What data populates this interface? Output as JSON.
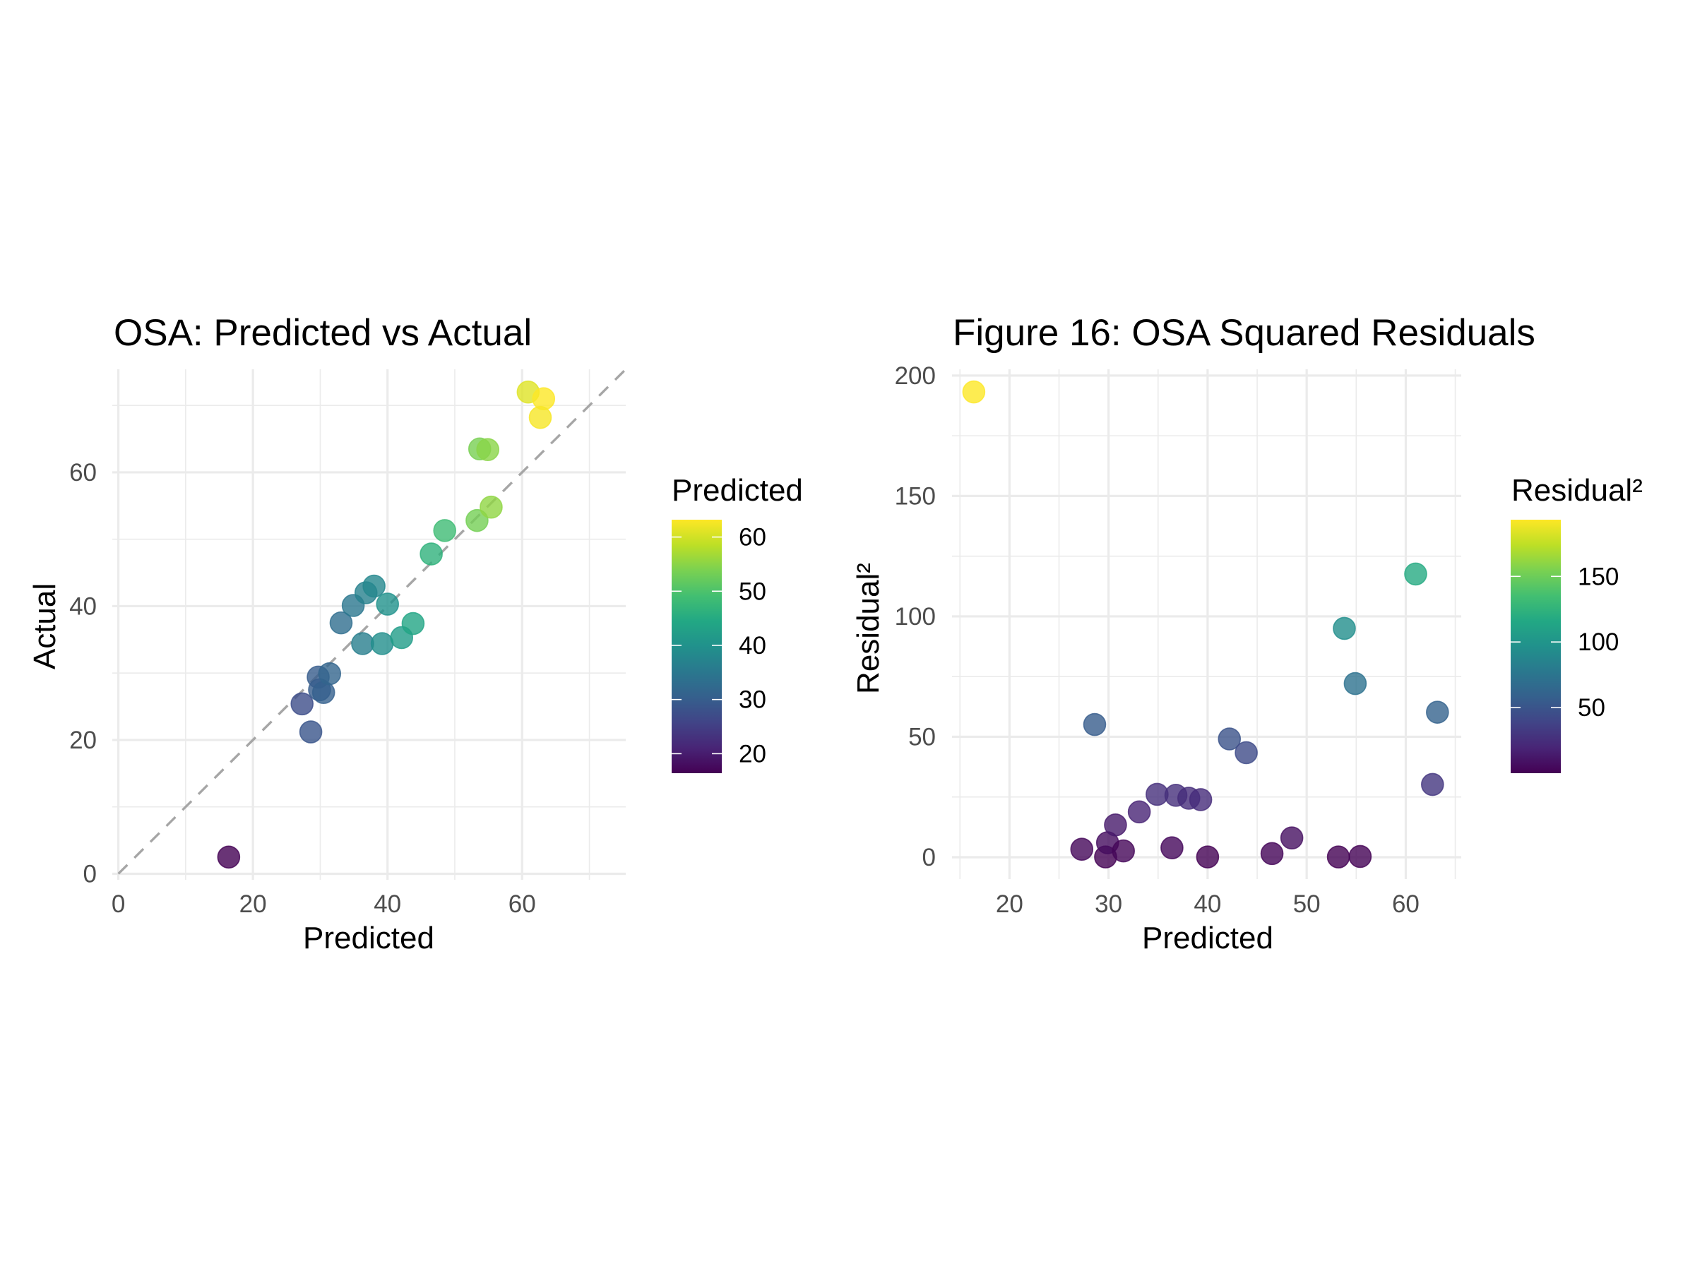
{
  "chart_data": [
    {
      "type": "scatter",
      "title": "OSA: Predicted vs Actual",
      "xlabel": "Predicted",
      "ylabel": "Actual",
      "xlim": [
        -0.9,
        75.4
      ],
      "ylim": [
        -0.9,
        75.4
      ],
      "x_ticks": [
        0,
        20,
        40,
        60
      ],
      "x_tick_labels": [
        "0",
        "20",
        "40",
        "60"
      ],
      "x_minor_ticks": [
        10,
        30,
        50,
        70
      ],
      "y_ticks": [
        0,
        20,
        40,
        60
      ],
      "y_tick_labels": [
        "0",
        "20",
        "40",
        "60"
      ],
      "y_minor_ticks": [
        10,
        30,
        50,
        70
      ],
      "grid": true,
      "reference_line": {
        "type": "identity",
        "slope": 1,
        "intercept": 0,
        "style": "dashed",
        "color": "#a6a6a6"
      },
      "color_by": "Predicted",
      "colormap": "viridis",
      "legend": {
        "title": "Predicted",
        "placement": "right",
        "range": [
          16.4,
          63.2
        ],
        "ticks": [
          20,
          30,
          40,
          50,
          60
        ],
        "tick_labels": [
          "20",
          "30",
          "40",
          "50",
          "60"
        ]
      },
      "points": [
        {
          "x": 16.4,
          "y": 2.5
        },
        {
          "x": 27.3,
          "y": 25.4
        },
        {
          "x": 28.6,
          "y": 21.2
        },
        {
          "x": 29.7,
          "y": 29.4
        },
        {
          "x": 29.9,
          "y": 27.5
        },
        {
          "x": 30.5,
          "y": 27.1
        },
        {
          "x": 31.4,
          "y": 29.9
        },
        {
          "x": 33.1,
          "y": 37.5
        },
        {
          "x": 34.9,
          "y": 40.1
        },
        {
          "x": 36.3,
          "y": 34.4
        },
        {
          "x": 36.8,
          "y": 42.0
        },
        {
          "x": 38.0,
          "y": 43.0
        },
        {
          "x": 39.2,
          "y": 34.4
        },
        {
          "x": 40.0,
          "y": 40.3
        },
        {
          "x": 42.1,
          "y": 35.3
        },
        {
          "x": 43.8,
          "y": 37.4
        },
        {
          "x": 46.5,
          "y": 47.8
        },
        {
          "x": 48.5,
          "y": 51.3
        },
        {
          "x": 53.3,
          "y": 52.8
        },
        {
          "x": 55.4,
          "y": 54.8
        },
        {
          "x": 53.7,
          "y": 63.5
        },
        {
          "x": 54.9,
          "y": 63.4
        },
        {
          "x": 60.9,
          "y": 72.0
        },
        {
          "x": 63.2,
          "y": 71.0
        },
        {
          "x": 62.7,
          "y": 68.2
        }
      ]
    },
    {
      "type": "scatter",
      "title": "Figure 16: OSA Squared Residuals",
      "xlabel": "Predicted",
      "ylabel": "Residual²",
      "xlim": [
        14.2,
        65.6
      ],
      "ylim": [
        -9.1,
        202.6
      ],
      "x_ticks": [
        20,
        30,
        40,
        50,
        60
      ],
      "x_tick_labels": [
        "20",
        "30",
        "40",
        "50",
        "60"
      ],
      "x_minor_ticks": [
        15,
        25,
        35,
        45,
        55,
        65
      ],
      "y_ticks": [
        0,
        50,
        100,
        150,
        200
      ],
      "y_tick_labels": [
        "0",
        "50",
        "100",
        "150",
        "200"
      ],
      "y_minor_ticks": [
        25,
        75,
        125,
        175
      ],
      "grid": true,
      "color_by": "Residual²",
      "colormap": "viridis",
      "legend": {
        "title": "Residual²",
        "placement": "right",
        "range": [
          0,
          193.2
        ],
        "ticks": [
          50,
          100,
          150
        ],
        "tick_labels": [
          "50",
          "100",
          "150"
        ]
      },
      "points": [
        {
          "x": 16.4,
          "y": 193.2
        },
        {
          "x": 27.3,
          "y": 3.3
        },
        {
          "x": 28.6,
          "y": 55.1
        },
        {
          "x": 29.7,
          "y": 0.1
        },
        {
          "x": 29.9,
          "y": 6.0
        },
        {
          "x": 30.7,
          "y": 13.4
        },
        {
          "x": 31.5,
          "y": 2.6
        },
        {
          "x": 33.1,
          "y": 18.8
        },
        {
          "x": 34.9,
          "y": 26.1
        },
        {
          "x": 36.4,
          "y": 3.9
        },
        {
          "x": 36.8,
          "y": 25.7
        },
        {
          "x": 38.1,
          "y": 24.5
        },
        {
          "x": 39.3,
          "y": 23.9
        },
        {
          "x": 40.0,
          "y": 0.1
        },
        {
          "x": 42.2,
          "y": 49.1
        },
        {
          "x": 43.9,
          "y": 43.4
        },
        {
          "x": 46.5,
          "y": 1.5
        },
        {
          "x": 48.5,
          "y": 8.0
        },
        {
          "x": 53.2,
          "y": 0.1
        },
        {
          "x": 53.8,
          "y": 95.0
        },
        {
          "x": 54.9,
          "y": 72.1
        },
        {
          "x": 55.4,
          "y": 0.3
        },
        {
          "x": 61.0,
          "y": 117.6
        },
        {
          "x": 62.7,
          "y": 30.2
        },
        {
          "x": 63.2,
          "y": 60.2
        }
      ]
    }
  ]
}
